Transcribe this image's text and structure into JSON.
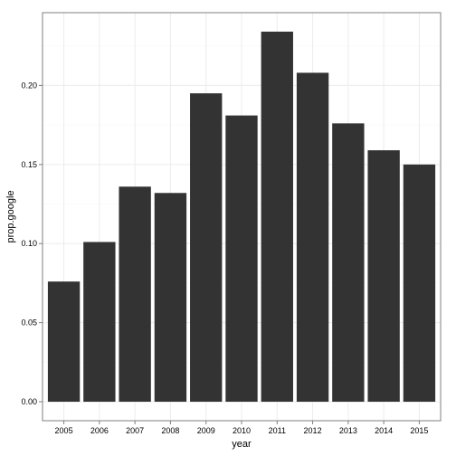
{
  "chart_data": {
    "type": "bar",
    "categories": [
      "2005",
      "2006",
      "2007",
      "2008",
      "2009",
      "2010",
      "2011",
      "2012",
      "2013",
      "2014",
      "2015"
    ],
    "values": [
      0.076,
      0.101,
      0.136,
      0.132,
      0.195,
      0.181,
      0.234,
      0.208,
      0.176,
      0.159,
      0.15
    ],
    "title": "",
    "xlabel": "year",
    "ylabel": "prop.google",
    "ylim": [
      -0.012,
      0.246
    ],
    "yticks": [
      0.0,
      0.05,
      0.1,
      0.15,
      0.2
    ],
    "ytick_labels": [
      "0.00",
      "0.05",
      "0.10",
      "0.15",
      "0.20"
    ],
    "grid": true,
    "legend": "none",
    "colors": {
      "bar": "#333333",
      "grid": "#ececec",
      "panel_border": "#7f7f7f",
      "background": "#ffffff"
    }
  }
}
